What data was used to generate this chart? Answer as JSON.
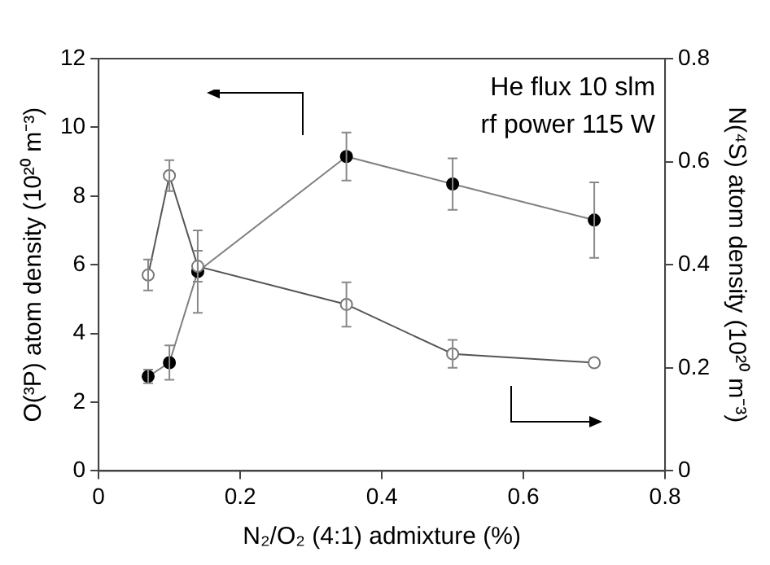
{
  "chart_data": {
    "type": "line",
    "xlabel": "N₂/O₂ (4:1) admixture (%)",
    "ylabel": "O(³P) atom density (10²⁰ m⁻³)",
    "y2label": "N(⁴S) atom density (10²⁰ m⁻³)",
    "x": [
      0.07,
      0.1,
      0.14,
      0.35,
      0.5,
      0.7
    ],
    "xlim": [
      0,
      0.8
    ],
    "xticks": [
      0,
      0.2,
      0.4,
      0.6,
      0.8
    ],
    "ylim": [
      0,
      12
    ],
    "yticks": [
      0,
      2,
      4,
      6,
      8,
      10,
      12
    ],
    "y2lim": [
      0,
      0.8
    ],
    "y2ticks": [
      0,
      0.2,
      0.4,
      0.6,
      0.8
    ],
    "grid": false,
    "legend": false,
    "marker": "circle",
    "line_style": "solid",
    "series": [
      {
        "color": "#000000",
        "values": [
          2.75,
          3.15,
          5.8,
          9.15,
          8.35,
          7.3
        ],
        "errors": [
          0.2,
          0.5,
          1.2,
          0.7,
          0.75,
          1.1
        ]
      },
      {
        "color": "#555555",
        "axis": "y2",
        "values": [
          0.38,
          0.573,
          0.397,
          0.323,
          0.227,
          0.21
        ],
        "errors": [
          0.03,
          0.03,
          0.03,
          0.043,
          0.027,
          null
        ]
      }
    ],
    "annotations": [
      "He flux 10 slm",
      "rf power 115 W"
    ]
  }
}
